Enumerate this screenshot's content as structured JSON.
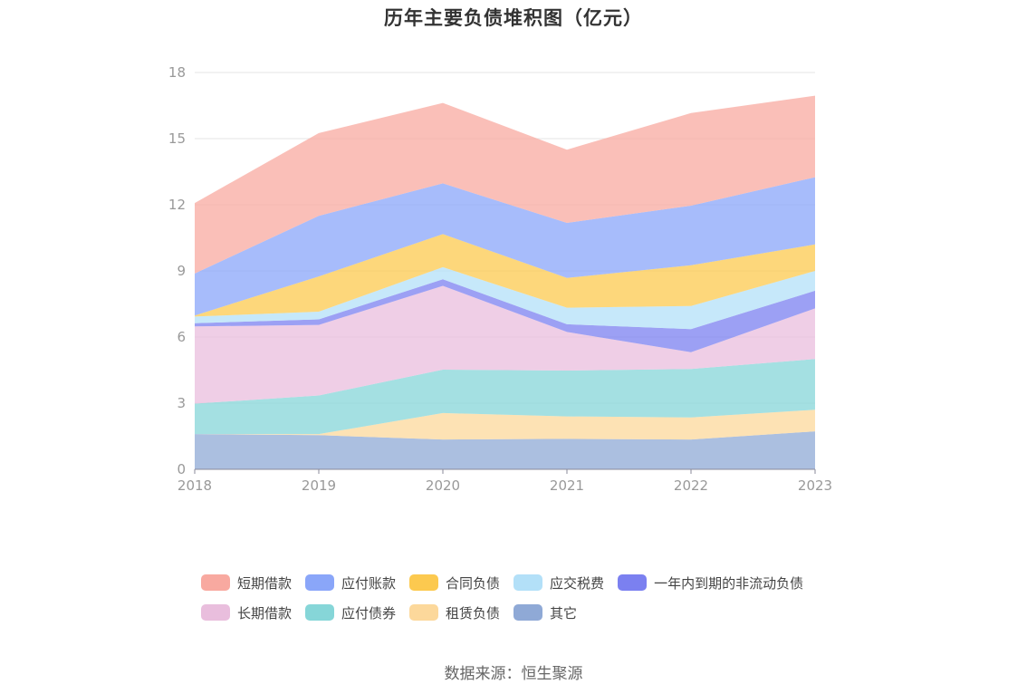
{
  "chart_data": {
    "type": "area",
    "stacked": true,
    "title": "历年主要负债堆积图（亿元）",
    "x": [
      "2018",
      "2019",
      "2020",
      "2021",
      "2022",
      "2023"
    ],
    "ylim": [
      0,
      18
    ],
    "yticks": [
      "0",
      "3",
      "6",
      "9",
      "12",
      "15",
      "18"
    ],
    "grid": true,
    "legend_position": "bottom",
    "series": [
      {
        "name": "其它",
        "color": "#8fa9d6",
        "values": [
          1.6,
          1.55,
          1.35,
          1.38,
          1.35,
          1.72
        ]
      },
      {
        "name": "租赁负债",
        "color": "#fcd89b",
        "values": [
          0.0,
          0.05,
          1.2,
          1.02,
          1.0,
          0.98
        ]
      },
      {
        "name": "应付债券",
        "color": "#86d6d8",
        "values": [
          1.38,
          1.75,
          1.97,
          2.08,
          2.2,
          2.3
        ]
      },
      {
        "name": "长期借款",
        "color": "#e9bedd",
        "values": [
          3.5,
          3.2,
          3.8,
          1.75,
          0.76,
          2.3
        ]
      },
      {
        "name": "一年内到期的非流动负债",
        "color": "#7b80f0",
        "values": [
          0.15,
          0.25,
          0.3,
          0.35,
          1.05,
          0.8
        ]
      },
      {
        "name": "应交税费",
        "color": "#b3e0f8",
        "values": [
          0.3,
          0.35,
          0.55,
          0.75,
          1.05,
          0.9
        ]
      },
      {
        "name": "合同负债",
        "color": "#fcc94f",
        "values": [
          0.05,
          1.6,
          1.5,
          1.35,
          1.85,
          1.2
        ]
      },
      {
        "name": "应付账款",
        "color": "#8aa6f9",
        "values": [
          1.9,
          2.75,
          2.3,
          2.5,
          2.7,
          3.05
        ]
      },
      {
        "name": "短期借款",
        "color": "#f8a9a0",
        "values": [
          3.2,
          3.75,
          3.65,
          3.32,
          4.2,
          3.7
        ]
      }
    ]
  },
  "legend": {
    "rows": [
      [
        {
          "label": "短期借款",
          "color": "#f8a9a0"
        },
        {
          "label": "应付账款",
          "color": "#8aa6f9"
        },
        {
          "label": "合同负债",
          "color": "#fcc94f"
        },
        {
          "label": "应交税费",
          "color": "#b3e0f8"
        },
        {
          "label": "一年内到期的非流动负债",
          "color": "#7b80f0"
        }
      ],
      [
        {
          "label": "长期借款",
          "color": "#e9bedd"
        },
        {
          "label": "应付债券",
          "color": "#86d6d8"
        },
        {
          "label": "租赁负债",
          "color": "#fcd89b"
        },
        {
          "label": "其它",
          "color": "#8fa9d6"
        }
      ]
    ]
  },
  "source": "数据来源：恒生聚源"
}
